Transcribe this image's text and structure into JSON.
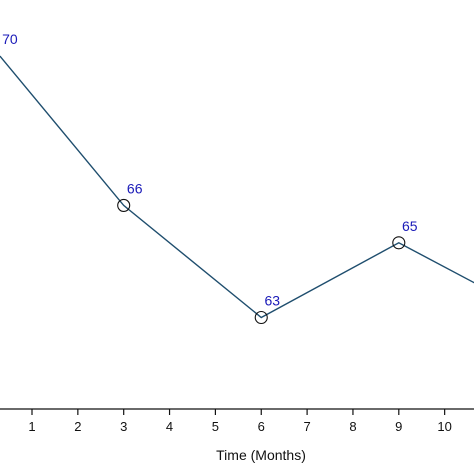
{
  "chart_data": {
    "type": "line",
    "xlabel": "Time (Months)",
    "ylabel": "",
    "title": "",
    "x_ticks": [
      1,
      2,
      3,
      4,
      5,
      6,
      7,
      8,
      9,
      10
    ],
    "xlim": [
      0.3,
      11
    ],
    "ylim": [
      60.55,
      71.5
    ],
    "grid": false,
    "series": [
      {
        "points": [
          {
            "x": 0.3,
            "y": 70,
            "label": "70",
            "marker": false
          },
          {
            "x": 3,
            "y": 66,
            "label": "66",
            "marker": true
          },
          {
            "x": 6,
            "y": 63,
            "label": "63",
            "marker": true
          },
          {
            "x": 9,
            "y": 65,
            "label": "65",
            "marker": true
          },
          {
            "x": 11,
            "y": 63.7,
            "label": null,
            "marker": false
          }
        ]
      }
    ],
    "colors": {
      "line": "#1f4e6e",
      "labels": "#1a1ab8",
      "axis": "#111111"
    }
  }
}
